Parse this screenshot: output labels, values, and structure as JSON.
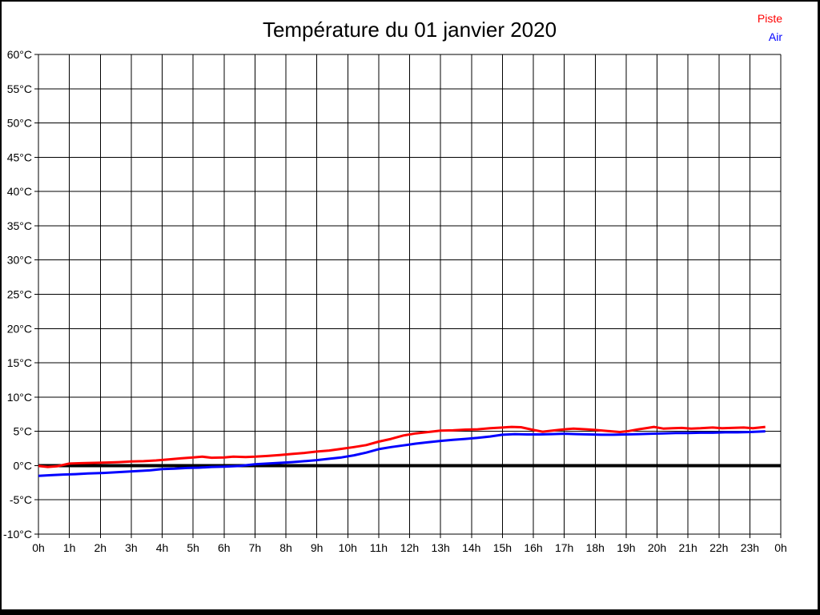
{
  "page": {
    "background": "#ffffff",
    "frame_border_color": "#000000"
  },
  "header": {
    "title": "Température du 01 janvier 2020"
  },
  "legend": {
    "position": "top-right",
    "items": [
      {
        "label": "Piste",
        "color": "#ff0000"
      },
      {
        "label": "Air",
        "color": "#0000ff"
      }
    ]
  },
  "chart_data": {
    "type": "line",
    "title": "Température du 01 janvier 2020",
    "xlabel": "",
    "ylabel": "",
    "x_unit": "hour of day",
    "y_unit": "°C",
    "xlim": [
      0,
      24
    ],
    "ylim": [
      -10,
      60
    ],
    "y_tick_step": 5,
    "grid": true,
    "grid_color": "#000000",
    "zero_line": {
      "value": 0,
      "color": "#000000",
      "width": 4
    },
    "x_tick_labels": [
      "0h",
      "1h",
      "2h",
      "3h",
      "4h",
      "5h",
      "6h",
      "7h",
      "8h",
      "9h",
      "10h",
      "11h",
      "12h",
      "13h",
      "14h",
      "15h",
      "16h",
      "17h",
      "18h",
      "19h",
      "20h",
      "21h",
      "22h",
      "23h",
      "0h"
    ],
    "y_tick_labels": [
      "60°C",
      "55°C",
      "50°C",
      "45°C",
      "40°C",
      "35°C",
      "30°C",
      "25°C",
      "20°C",
      "15°C",
      "10°C",
      "5°C",
      "0°C",
      "-5°C",
      "-10°C"
    ],
    "series": [
      {
        "name": "Piste",
        "color": "#ff0000",
        "points": [
          [
            0,
            -0.05
          ],
          [
            0.3,
            -0.2
          ],
          [
            0.6,
            -0.1
          ],
          [
            1,
            0.3
          ],
          [
            1.4,
            0.35
          ],
          [
            1.8,
            0.4
          ],
          [
            2.2,
            0.45
          ],
          [
            2.6,
            0.5
          ],
          [
            3,
            0.6
          ],
          [
            3.4,
            0.65
          ],
          [
            3.8,
            0.75
          ],
          [
            4.2,
            0.9
          ],
          [
            4.6,
            1.05
          ],
          [
            5,
            1.2
          ],
          [
            5.3,
            1.3
          ],
          [
            5.6,
            1.15
          ],
          [
            6,
            1.2
          ],
          [
            6.3,
            1.3
          ],
          [
            6.7,
            1.25
          ],
          [
            7,
            1.3
          ],
          [
            7.4,
            1.4
          ],
          [
            7.8,
            1.55
          ],
          [
            8.2,
            1.7
          ],
          [
            8.6,
            1.85
          ],
          [
            9,
            2.05
          ],
          [
            9.4,
            2.2
          ],
          [
            9.8,
            2.45
          ],
          [
            10.2,
            2.7
          ],
          [
            10.6,
            3.0
          ],
          [
            11,
            3.5
          ],
          [
            11.4,
            3.9
          ],
          [
            11.8,
            4.4
          ],
          [
            12.2,
            4.7
          ],
          [
            12.6,
            4.9
          ],
          [
            13,
            5.1
          ],
          [
            13.4,
            5.15
          ],
          [
            13.8,
            5.25
          ],
          [
            14.2,
            5.3
          ],
          [
            14.6,
            5.45
          ],
          [
            15,
            5.55
          ],
          [
            15.3,
            5.65
          ],
          [
            15.6,
            5.6
          ],
          [
            16,
            5.2
          ],
          [
            16.3,
            4.95
          ],
          [
            16.7,
            5.15
          ],
          [
            17,
            5.3
          ],
          [
            17.3,
            5.4
          ],
          [
            17.7,
            5.3
          ],
          [
            18,
            5.2
          ],
          [
            18.4,
            5.05
          ],
          [
            18.8,
            4.9
          ],
          [
            19.1,
            5.05
          ],
          [
            19.4,
            5.3
          ],
          [
            19.7,
            5.5
          ],
          [
            19.9,
            5.65
          ],
          [
            20.2,
            5.4
          ],
          [
            20.5,
            5.45
          ],
          [
            20.8,
            5.5
          ],
          [
            21.1,
            5.4
          ],
          [
            21.4,
            5.45
          ],
          [
            21.8,
            5.55
          ],
          [
            22.1,
            5.45
          ],
          [
            22.4,
            5.5
          ],
          [
            22.8,
            5.55
          ],
          [
            23.1,
            5.45
          ],
          [
            23.5,
            5.65
          ]
        ]
      },
      {
        "name": "Air",
        "color": "#0000ff",
        "points": [
          [
            0,
            -1.5
          ],
          [
            0.4,
            -1.4
          ],
          [
            0.8,
            -1.3
          ],
          [
            1.2,
            -1.25
          ],
          [
            1.6,
            -1.15
          ],
          [
            2,
            -1.1
          ],
          [
            2.4,
            -1.0
          ],
          [
            2.8,
            -0.9
          ],
          [
            3.2,
            -0.8
          ],
          [
            3.6,
            -0.7
          ],
          [
            4,
            -0.5
          ],
          [
            4.4,
            -0.45
          ],
          [
            4.8,
            -0.35
          ],
          [
            5.2,
            -0.3
          ],
          [
            5.6,
            -0.2
          ],
          [
            6,
            -0.15
          ],
          [
            6.5,
            -0.05
          ],
          [
            7,
            0.2
          ],
          [
            7.4,
            0.3
          ],
          [
            7.8,
            0.4
          ],
          [
            8.2,
            0.5
          ],
          [
            8.6,
            0.65
          ],
          [
            9,
            0.8
          ],
          [
            9.4,
            1.0
          ],
          [
            9.8,
            1.2
          ],
          [
            10.2,
            1.5
          ],
          [
            10.6,
            1.9
          ],
          [
            11,
            2.4
          ],
          [
            11.4,
            2.7
          ],
          [
            11.8,
            2.95
          ],
          [
            12.2,
            3.2
          ],
          [
            12.6,
            3.4
          ],
          [
            13,
            3.6
          ],
          [
            13.4,
            3.75
          ],
          [
            13.8,
            3.9
          ],
          [
            14.2,
            4.05
          ],
          [
            14.6,
            4.25
          ],
          [
            15,
            4.5
          ],
          [
            15.4,
            4.6
          ],
          [
            15.8,
            4.55
          ],
          [
            16.2,
            4.55
          ],
          [
            16.6,
            4.6
          ],
          [
            17,
            4.65
          ],
          [
            17.4,
            4.6
          ],
          [
            17.8,
            4.55
          ],
          [
            18.2,
            4.5
          ],
          [
            18.6,
            4.5
          ],
          [
            19,
            4.55
          ],
          [
            19.4,
            4.6
          ],
          [
            19.8,
            4.65
          ],
          [
            20.2,
            4.7
          ],
          [
            20.6,
            4.75
          ],
          [
            21,
            4.75
          ],
          [
            21.4,
            4.8
          ],
          [
            21.8,
            4.8
          ],
          [
            22.2,
            4.85
          ],
          [
            22.6,
            4.85
          ],
          [
            23,
            4.9
          ],
          [
            23.5,
            5.0
          ]
        ]
      }
    ]
  }
}
